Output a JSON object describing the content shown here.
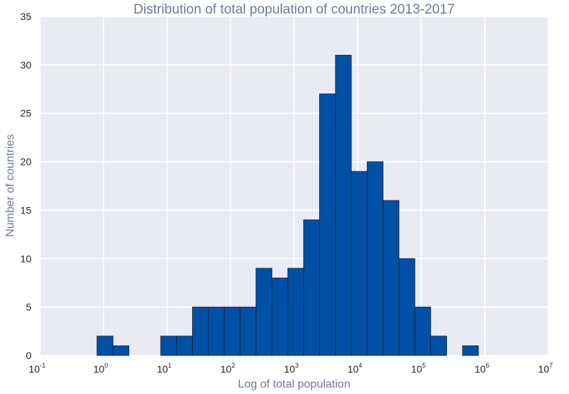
{
  "chart_data": {
    "type": "bar",
    "title": "Distribution of total population of countries 2013-2017",
    "xlabel": "Log of total population",
    "ylabel": "Number of countries",
    "x_scale": "log",
    "xlim": [
      0.1,
      10000000
    ],
    "ylim": [
      0,
      35
    ],
    "grid": true,
    "x_ticks": [
      {
        "base": "10",
        "exp": "-1",
        "value": 0.1
      },
      {
        "base": "10",
        "exp": "0",
        "value": 1
      },
      {
        "base": "10",
        "exp": "1",
        "value": 10
      },
      {
        "base": "10",
        "exp": "2",
        "value": 100
      },
      {
        "base": "10",
        "exp": "3",
        "value": 1000
      },
      {
        "base": "10",
        "exp": "4",
        "value": 10000
      },
      {
        "base": "10",
        "exp": "5",
        "value": 100000
      },
      {
        "base": "10",
        "exp": "6",
        "value": 1000000
      },
      {
        "base": "10",
        "exp": "7",
        "value": 10000000
      }
    ],
    "y_ticks": [
      "0",
      "5",
      "10",
      "15",
      "20",
      "25",
      "30",
      "35"
    ],
    "bar_color": "#0050a6",
    "bins": [
      {
        "x0": 0.79,
        "x1": 1.41,
        "count": 2
      },
      {
        "x0": 1.41,
        "x1": 2.51,
        "count": 1
      },
      {
        "x0": 2.51,
        "x1": 4.47,
        "count": 0
      },
      {
        "x0": 4.47,
        "x1": 7.94,
        "count": 0
      },
      {
        "x0": 7.94,
        "x1": 14.1,
        "count": 2
      },
      {
        "x0": 14.1,
        "x1": 25.1,
        "count": 2
      },
      {
        "x0": 25.1,
        "x1": 44.7,
        "count": 5
      },
      {
        "x0": 44.7,
        "x1": 79.4,
        "count": 5
      },
      {
        "x0": 79.4,
        "x1": 141,
        "count": 5
      },
      {
        "x0": 141,
        "x1": 251,
        "count": 5
      },
      {
        "x0": 251,
        "x1": 447,
        "count": 9
      },
      {
        "x0": 447,
        "x1": 794,
        "count": 8
      },
      {
        "x0": 794,
        "x1": 1410,
        "count": 9
      },
      {
        "x0": 1410,
        "x1": 2510,
        "count": 14
      },
      {
        "x0": 2510,
        "x1": 4470,
        "count": 27
      },
      {
        "x0": 4470,
        "x1": 7940,
        "count": 31
      },
      {
        "x0": 7940,
        "x1": 14100,
        "count": 19
      },
      {
        "x0": 14100,
        "x1": 25100,
        "count": 20
      },
      {
        "x0": 25100,
        "x1": 44700,
        "count": 16
      },
      {
        "x0": 44700,
        "x1": 79400,
        "count": 10
      },
      {
        "x0": 79400,
        "x1": 141000,
        "count": 5
      },
      {
        "x0": 141000,
        "x1": 251000,
        "count": 2
      },
      {
        "x0": 251000,
        "x1": 447000,
        "count": 0
      },
      {
        "x0": 447000,
        "x1": 794000,
        "count": 1
      }
    ]
  }
}
